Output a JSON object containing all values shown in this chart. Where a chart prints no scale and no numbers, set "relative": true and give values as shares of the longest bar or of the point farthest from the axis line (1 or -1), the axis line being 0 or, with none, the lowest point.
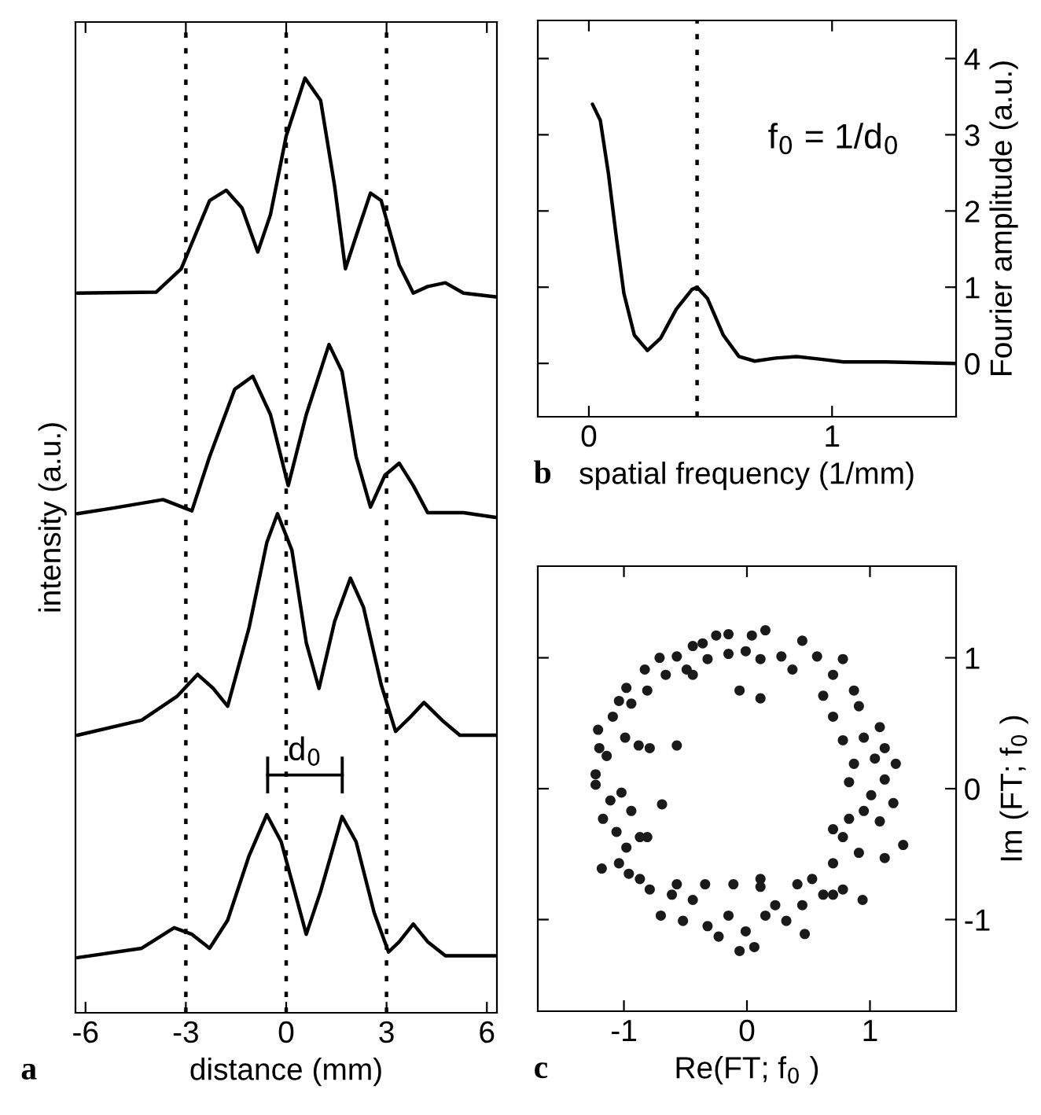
{
  "chart_data": [
    {
      "type": "line",
      "relative": true,
      "xlabel": "distance (mm)",
      "ylabel": "intensity (a.u.)",
      "xlim": [
        -6.3,
        6.3
      ],
      "xticks": [
        -6,
        -3,
        0,
        3,
        6
      ],
      "tick_labels": "x",
      "grid": false,
      "legend": false,
      "line_style": "solid",
      "marker": "none",
      "series": [
        {
          "color": "#000000",
          "x": [
            -6.24,
            -3.89,
            -3.14,
            -2.29,
            -1.79,
            -1.32,
            -0.85,
            -0.47,
            0,
            0.56,
            1.03,
            1.45,
            1.77,
            2.09,
            2.52,
            2.84,
            3.38,
            3.8,
            4.23,
            4.76,
            5.3,
            6.26
          ],
          "values": [
            0.77,
            0.771,
            0.796,
            0.869,
            0.88,
            0.861,
            0.814,
            0.854,
            0.938,
            1.0,
            0.976,
            0.884,
            0.796,
            0.831,
            0.877,
            0.869,
            0.8,
            0.77,
            0.777,
            0.781,
            0.77,
            0.766
          ]
        },
        {
          "color": "#000000",
          "x": [
            -6.24,
            -5.17,
            -3.68,
            -2.82,
            -2.29,
            -1.54,
            -1.0,
            -0.47,
            0.06,
            0.6,
            1.28,
            1.67,
            2.09,
            2.52,
            2.95,
            3.38,
            3.8,
            4.23,
            5.3,
            6.26
          ],
          "values": [
            0.534,
            0.54,
            0.549,
            0.537,
            0.595,
            0.667,
            0.681,
            0.64,
            0.564,
            0.64,
            0.715,
            0.686,
            0.595,
            0.541,
            0.575,
            0.588,
            0.564,
            0.535,
            0.535,
            0.53
          ]
        },
        {
          "color": "#000000",
          "x": [
            -6.24,
            -4.32,
            -3.25,
            -2.65,
            -2.18,
            -1.75,
            -1.11,
            -0.58,
            -0.26,
            0.17,
            0.6,
            0.98,
            1.45,
            1.92,
            2.31,
            2.84,
            3.27,
            3.7,
            4.12,
            4.66,
            5.19,
            6.26
          ],
          "values": [
            0.297,
            0.313,
            0.339,
            0.362,
            0.347,
            0.328,
            0.412,
            0.503,
            0.534,
            0.495,
            0.396,
            0.347,
            0.419,
            0.465,
            0.434,
            0.351,
            0.301,
            0.316,
            0.332,
            0.313,
            0.297,
            0.297
          ]
        },
        {
          "color": "#000000",
          "x": [
            -6.24,
            -4.32,
            -3.35,
            -2.82,
            -2.29,
            -1.75,
            -1.11,
            -0.58,
            -0.15,
            0.6,
            1.03,
            1.67,
            2.09,
            2.63,
            3.06,
            3.38,
            3.8,
            4.23,
            4.76,
            6.26
          ],
          "values": [
            0.059,
            0.069,
            0.091,
            0.084,
            0.069,
            0.099,
            0.168,
            0.212,
            0.183,
            0.084,
            0.13,
            0.21,
            0.183,
            0.107,
            0.065,
            0.076,
            0.095,
            0.076,
            0.061,
            0.061
          ]
        }
      ],
      "ref_lines": [
        {
          "axis": "x",
          "value": -3,
          "color": "#000000",
          "line_style": "dotted"
        },
        {
          "axis": "x",
          "value": 0,
          "color": "#000000",
          "line_style": "dotted"
        },
        {
          "axis": "x",
          "value": 3,
          "color": "#000000",
          "line_style": "dotted"
        }
      ],
      "annotations": [
        "a",
        "d$_{0}$"
      ]
    },
    {
      "type": "line",
      "xlabel": "spatial frequency (1/mm)",
      "y2label": "Fourier amplitude (a.u.)",
      "xlim": [
        -0.21,
        1.51
      ],
      "xticks": [
        0,
        1
      ],
      "y2lim": [
        -0.7,
        4.5
      ],
      "y2ticks": [
        0,
        1,
        2,
        3,
        4
      ],
      "grid": false,
      "legend": false,
      "line_style": "solid",
      "marker": "none",
      "series": [
        {
          "color": "#000000",
          "axis": "y2",
          "x": [
            0.015,
            0.047,
            0.08,
            0.112,
            0.144,
            0.187,
            0.241,
            0.295,
            0.359,
            0.424,
            0.445,
            0.488,
            0.553,
            0.617,
            0.682,
            0.768,
            0.854,
            0.94,
            1.047,
            1.219,
            1.51
          ],
          "values": [
            3.4,
            3.19,
            2.5,
            1.68,
            0.92,
            0.37,
            0.17,
            0.33,
            0.71,
            0.97,
            1.0,
            0.85,
            0.37,
            0.09,
            0.03,
            0.07,
            0.09,
            0.06,
            0.02,
            0.02,
            0.0
          ]
        }
      ],
      "ref_lines": [
        {
          "axis": "x",
          "value": 0.445,
          "color": "#000000",
          "line_style": "dotted"
        }
      ],
      "annotations": [
        "b",
        "f$_{0}$ = 1/d$_{0}$"
      ]
    },
    {
      "type": "scatter",
      "xlabel": "Re(FT; f$_{0}$ )",
      "y2label": "Im (FT; f$_{0}$ )",
      "xlim": [
        -1.7,
        1.7
      ],
      "xticks": [
        -1,
        0,
        1
      ],
      "y2lim": [
        -1.7,
        1.7
      ],
      "y2ticks": [
        -1,
        0,
        1
      ],
      "grid": false,
      "legend": false,
      "marker": "circle",
      "series": [
        {
          "color": "#1a1a1a",
          "axis": "y2",
          "x": [
            0.15,
            0.04,
            -0.15,
            -0.25,
            -0.36,
            -0.44,
            -0.57,
            -0.71,
            -0.83,
            -0.98,
            -1.09,
            -1.21,
            -1.04,
            -0.94,
            -0.81,
            -0.66,
            -0.49,
            -0.32,
            -0.15,
            -0.01,
            0.11,
            0.28,
            0.45,
            0.37,
            0.57,
            0.78,
            0.7,
            0.62,
            0.87,
            0.91,
            1.08,
            1.12,
            1.21,
            0.95,
            1.04,
            0.87,
            1.12,
            1.01,
            1.19,
            1.08,
            0.95,
            1.27,
            1.12,
            0.91,
            0.83,
            0.78,
            0.7,
            0.94,
            0.78,
            0.62,
            0.53,
            0.45,
            0.32,
            0.47,
            0.23,
            0.11,
            0.15,
            0.06,
            -0.01,
            -0.06,
            -0.15,
            -0.23,
            -0.32,
            -0.34,
            -0.44,
            -0.52,
            -0.61,
            -0.7,
            -0.79,
            -0.87,
            -0.96,
            -1.04,
            -1.18,
            -0.98,
            -1.06,
            -0.87,
            -0.81,
            -1.17,
            -1.11,
            -1.02,
            -1.23,
            -1.23,
            -1.14,
            -1.2,
            -0.99,
            -0.88,
            -0.69,
            -0.57,
            -0.79,
            -0.44,
            0.11,
            -0.06,
            0.7,
            0.78,
            0.83,
            0.7,
            0.11,
            -0.11,
            -0.57,
            -0.94,
            0.7,
            0.41
          ],
          "values": [
            1.21,
            1.17,
            1.18,
            1.17,
            1.11,
            1.09,
            1.01,
            1.0,
            0.91,
            0.77,
            0.55,
            0.45,
            0.67,
            0.65,
            0.75,
            0.87,
            0.91,
            0.99,
            1.03,
            1.05,
            0.99,
            1.01,
            1.13,
            0.91,
            1.01,
            0.99,
            0.87,
            0.71,
            0.75,
            0.63,
            0.47,
            0.31,
            0.19,
            0.39,
            0.23,
            0.19,
            0.07,
            -0.05,
            -0.11,
            -0.25,
            -0.17,
            -0.43,
            -0.53,
            -0.49,
            -0.23,
            -0.37,
            -0.57,
            -0.85,
            -0.77,
            -0.81,
            -0.69,
            -0.89,
            -1.01,
            -1.11,
            -0.89,
            -0.69,
            -0.97,
            -1.21,
            -1.09,
            -1.24,
            -0.97,
            -1.13,
            -1.05,
            -0.73,
            -0.85,
            -1.01,
            -0.81,
            -0.97,
            -0.77,
            -0.69,
            -0.65,
            -0.57,
            -0.61,
            -0.45,
            -0.33,
            -0.37,
            -0.37,
            -0.23,
            -0.09,
            -0.03,
            0.03,
            0.11,
            0.25,
            0.31,
            0.39,
            0.33,
            -0.12,
            0.33,
            0.31,
            0.87,
            0.69,
            0.75,
            0.55,
            0.37,
            0.05,
            -0.31,
            -0.75,
            -0.73,
            -0.73,
            -0.17,
            -0.81,
            -0.73
          ]
        }
      ],
      "annotations": [
        "c"
      ]
    }
  ]
}
